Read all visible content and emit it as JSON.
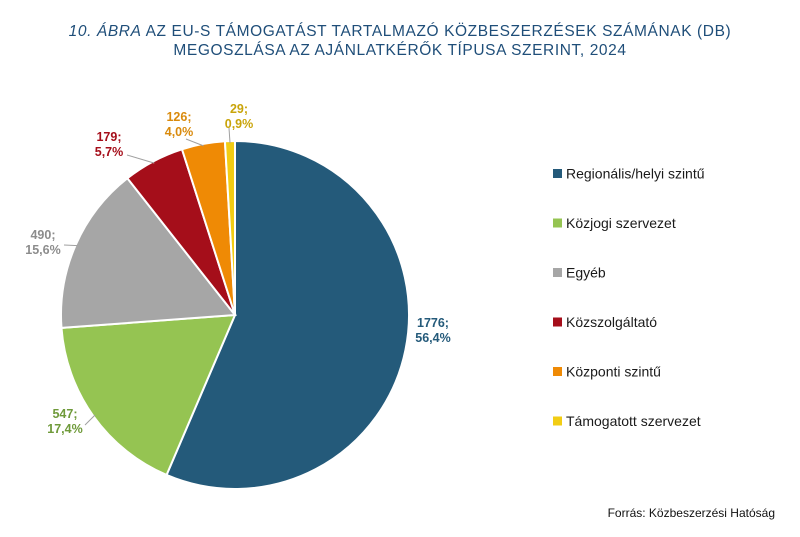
{
  "title": {
    "prefix": "10. ÁBRA",
    "rest_line1": " AZ EU-S TÁMOGATÁST TARTALMAZÓ KÖZBESZERZÉSEK SZÁMÁNAK (DB)",
    "line2": "MEGOSZLÁSA AZ AJÁNLATKÉRŐK TÍPUSA SZERINT, 2024"
  },
  "source": "Forrás: Közbeszerzési Hatóság",
  "chart_data": {
    "type": "pie",
    "slices": [
      {
        "name": "Regionális/helyi szintű",
        "value": 1776,
        "percent": "56,4%",
        "label_line1": "1776;",
        "label_line2": "56,4%",
        "color": "#245a7a"
      },
      {
        "name": "Közjogi szervezet",
        "value": 547,
        "percent": "17,4%",
        "label_line1": "547;",
        "label_line2": "17,4%",
        "color": "#95c452"
      },
      {
        "name": "Egyéb",
        "value": 490,
        "percent": "15,6%",
        "label_line1": "490;",
        "label_line2": "15,6%",
        "color": "#a6a6a6"
      },
      {
        "name": "Közszolgáltató",
        "value": 179,
        "percent": "5,7%",
        "label_line1": "179;",
        "label_line2": "5,7%",
        "color": "#a50e1a"
      },
      {
        "name": "Központi szintű",
        "value": 126,
        "percent": "4,0%",
        "label_line1": "126;",
        "label_line2": "4,0%",
        "color": "#ef8a05"
      },
      {
        "name": "Támogatott szervezet",
        "value": 29,
        "percent": "0,9%",
        "label_line1": "29;",
        "label_line2": "0,9%",
        "color": "#f2cd14"
      }
    ],
    "label_colors": [
      "#245a7a",
      "#6f9a3a",
      "#8c8c8c",
      "#a50e1a",
      "#d98a0c",
      "#c9a40a"
    ],
    "legend_position": "right"
  }
}
